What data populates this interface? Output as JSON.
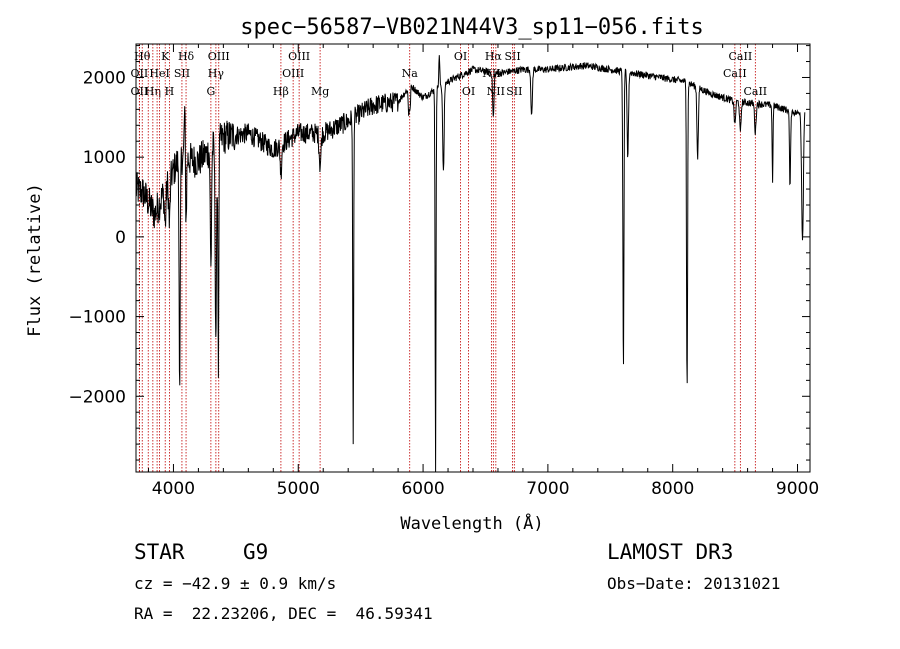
{
  "chart_data": {
    "type": "line",
    "title": "spec−56587−VB021N44V3_sp11−056.fits",
    "xlabel": "Wavelength (Å)",
    "ylabel": "Flux (relative)",
    "xlim": [
      3700,
      9100
    ],
    "ylim": [
      -2950,
      2420
    ],
    "x_ticks": [
      {
        "value": 4000,
        "label": "4000"
      },
      {
        "value": 5000,
        "label": "5000"
      },
      {
        "value": 6000,
        "label": "6000"
      },
      {
        "value": 7000,
        "label": "7000"
      },
      {
        "value": 8000,
        "label": "8000"
      },
      {
        "value": 9000,
        "label": "9000"
      }
    ],
    "y_ticks": [
      {
        "value": 2000,
        "label": "2000"
      },
      {
        "value": 1000,
        "label": "1000"
      },
      {
        "value": 0,
        "label": "0"
      },
      {
        "value": -1000,
        "label": "−1000"
      },
      {
        "value": -2000,
        "label": "−2000"
      }
    ],
    "spectrum": {
      "continuum": [
        [
          3700,
          600
        ],
        [
          3760,
          550
        ],
        [
          3850,
          280
        ],
        [
          3950,
          650
        ],
        [
          4050,
          1000
        ],
        [
          4200,
          950
        ],
        [
          4400,
          1250
        ],
        [
          4600,
          1300
        ],
        [
          4800,
          1100
        ],
        [
          5000,
          1300
        ],
        [
          5200,
          1300
        ],
        [
          5400,
          1450
        ],
        [
          5600,
          1650
        ],
        [
          5800,
          1700
        ],
        [
          5900,
          1900
        ],
        [
          6000,
          1750
        ],
        [
          6200,
          1950
        ],
        [
          6400,
          2100
        ],
        [
          6600,
          2050
        ],
        [
          6800,
          2100
        ],
        [
          7000,
          2100
        ],
        [
          7300,
          2150
        ],
        [
          7500,
          2100
        ],
        [
          7700,
          2050
        ],
        [
          7900,
          2000
        ],
        [
          8100,
          1950
        ],
        [
          8300,
          1800
        ],
        [
          8500,
          1700
        ],
        [
          8800,
          1650
        ],
        [
          9000,
          1550
        ],
        [
          9060,
          1650
        ]
      ],
      "absorptions": [
        [
          3934,
          150,
          8
        ],
        [
          3968,
          150,
          8
        ],
        [
          4050,
          -2090,
          6
        ],
        [
          4101,
          200,
          6
        ],
        [
          4300,
          -400,
          7
        ],
        [
          4340,
          -1250,
          8
        ],
        [
          4360,
          -1620,
          5
        ],
        [
          4861,
          800,
          8
        ],
        [
          5175,
          900,
          10
        ],
        [
          5440,
          -2600,
          5
        ],
        [
          5890,
          1100,
          8
        ],
        [
          6100,
          -3000,
          5
        ],
        [
          6163,
          800,
          8
        ],
        [
          6563,
          1500,
          8
        ],
        [
          6870,
          1500,
          8
        ],
        [
          7605,
          -1720,
          6
        ],
        [
          7640,
          1000,
          8
        ],
        [
          8115,
          -1910,
          6
        ],
        [
          8200,
          1000,
          8
        ],
        [
          8498,
          1400,
          8
        ],
        [
          8542,
          1300,
          8
        ],
        [
          8662,
          1300,
          8
        ],
        [
          8800,
          700,
          5
        ],
        [
          8940,
          600,
          6
        ],
        [
          9040,
          -50,
          10
        ]
      ],
      "emissions": [
        [
          5890,
          2400,
          5
        ],
        [
          6130,
          2250,
          6
        ],
        [
          4090,
          1600,
          6
        ]
      ]
    },
    "line_markers": [
      {
        "x": 3750,
        "label": "Hθ",
        "row": 0
      },
      {
        "x": 3727,
        "label": "OII",
        "row": 1
      },
      {
        "x": 3727,
        "label": "OII",
        "row": 2
      },
      {
        "x": 3798,
        "label": "",
        "row": 0
      },
      {
        "x": 3835,
        "label": "Hη",
        "row": 2
      },
      {
        "x": 3869,
        "label": "",
        "row": 0
      },
      {
        "x": 3889,
        "label": "HeI",
        "row": 1
      },
      {
        "x": 3934,
        "label": "K",
        "row": 0
      },
      {
        "x": 3968,
        "label": "H",
        "row": 2
      },
      {
        "x": 4068,
        "label": "SII",
        "row": 1
      },
      {
        "x": 4101,
        "label": "Hδ",
        "row": 0
      },
      {
        "x": 4300,
        "label": "G",
        "row": 2
      },
      {
        "x": 4340,
        "label": "Hγ",
        "row": 1
      },
      {
        "x": 4363,
        "label": "OIII",
        "row": 0
      },
      {
        "x": 4861,
        "label": "Hβ",
        "row": 2
      },
      {
        "x": 4959,
        "label": "OIII",
        "row": 1
      },
      {
        "x": 5007,
        "label": "OIII",
        "row": 0
      },
      {
        "x": 5175,
        "label": "Mg",
        "row": 2
      },
      {
        "x": 5893,
        "label": "Na",
        "row": 1
      },
      {
        "x": 6300,
        "label": "OI",
        "row": 0
      },
      {
        "x": 6364,
        "label": "OI",
        "row": 2
      },
      {
        "x": 6548,
        "label": "NII",
        "row": 1
      },
      {
        "x": 6563,
        "label": "Hα",
        "row": 0
      },
      {
        "x": 6583,
        "label": "NII",
        "row": 2
      },
      {
        "x": 6717,
        "label": "SII",
        "row": 0
      },
      {
        "x": 6731,
        "label": "SII",
        "row": 2
      },
      {
        "x": 8498,
        "label": "CaII",
        "row": 1
      },
      {
        "x": 8542,
        "label": "CaII",
        "row": 0
      },
      {
        "x": 8662,
        "label": "CaII",
        "row": 2
      }
    ]
  },
  "info": {
    "object_class": "STAR",
    "subclass": "G9",
    "redshift": "cz = −42.9 ± 0.9 km/s",
    "coords": "RA =  22.23206, DEC =  46.59341",
    "survey": "LAMOST DR3",
    "obs_date": "Obs−Date: 20131021"
  },
  "colors": {
    "line_marker": "#c00000",
    "spectrum": "#000000",
    "frame": "#000000"
  }
}
